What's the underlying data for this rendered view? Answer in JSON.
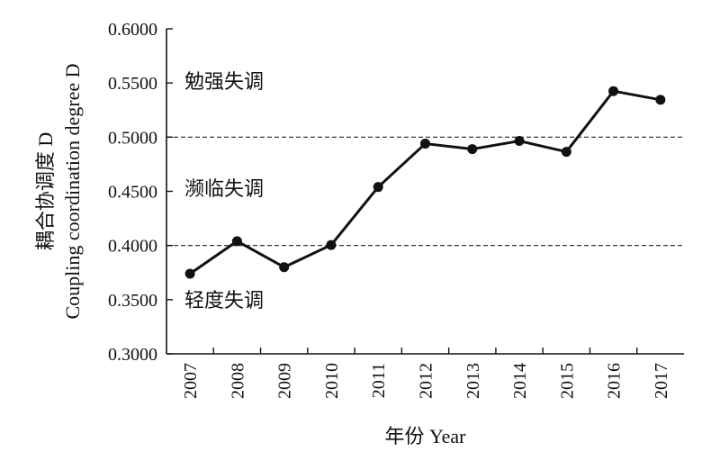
{
  "chart_data": {
    "type": "line",
    "title": "",
    "xlabel": "年份 Year",
    "ylabel": "耦合协调度 D",
    "ylabel_en": "Coupling coordination degree D",
    "x": [
      "2007",
      "2008",
      "2009",
      "2010",
      "2011",
      "2012",
      "2013",
      "2014",
      "2015",
      "2016",
      "2017"
    ],
    "series": [
      {
        "values": [
          0.374,
          0.404,
          0.38,
          0.4005,
          0.454,
          0.494,
          0.489,
          0.4965,
          0.4865,
          0.5425,
          0.5345
        ]
      }
    ],
    "ylim": [
      0.3,
      0.6
    ],
    "yticks": [
      "0.3000",
      "0.3500",
      "0.4000",
      "0.4500",
      "0.5000",
      "0.5500",
      "0.6000"
    ],
    "reference_lines": [
      0.4,
      0.5
    ],
    "zone_labels": [
      {
        "text": "勉强失调",
        "y": 0.552
      },
      {
        "text": "濒临失调",
        "y": 0.453
      },
      {
        "text": "轻度失调",
        "y": 0.35
      }
    ],
    "grid": false,
    "line_color": "#111111"
  }
}
